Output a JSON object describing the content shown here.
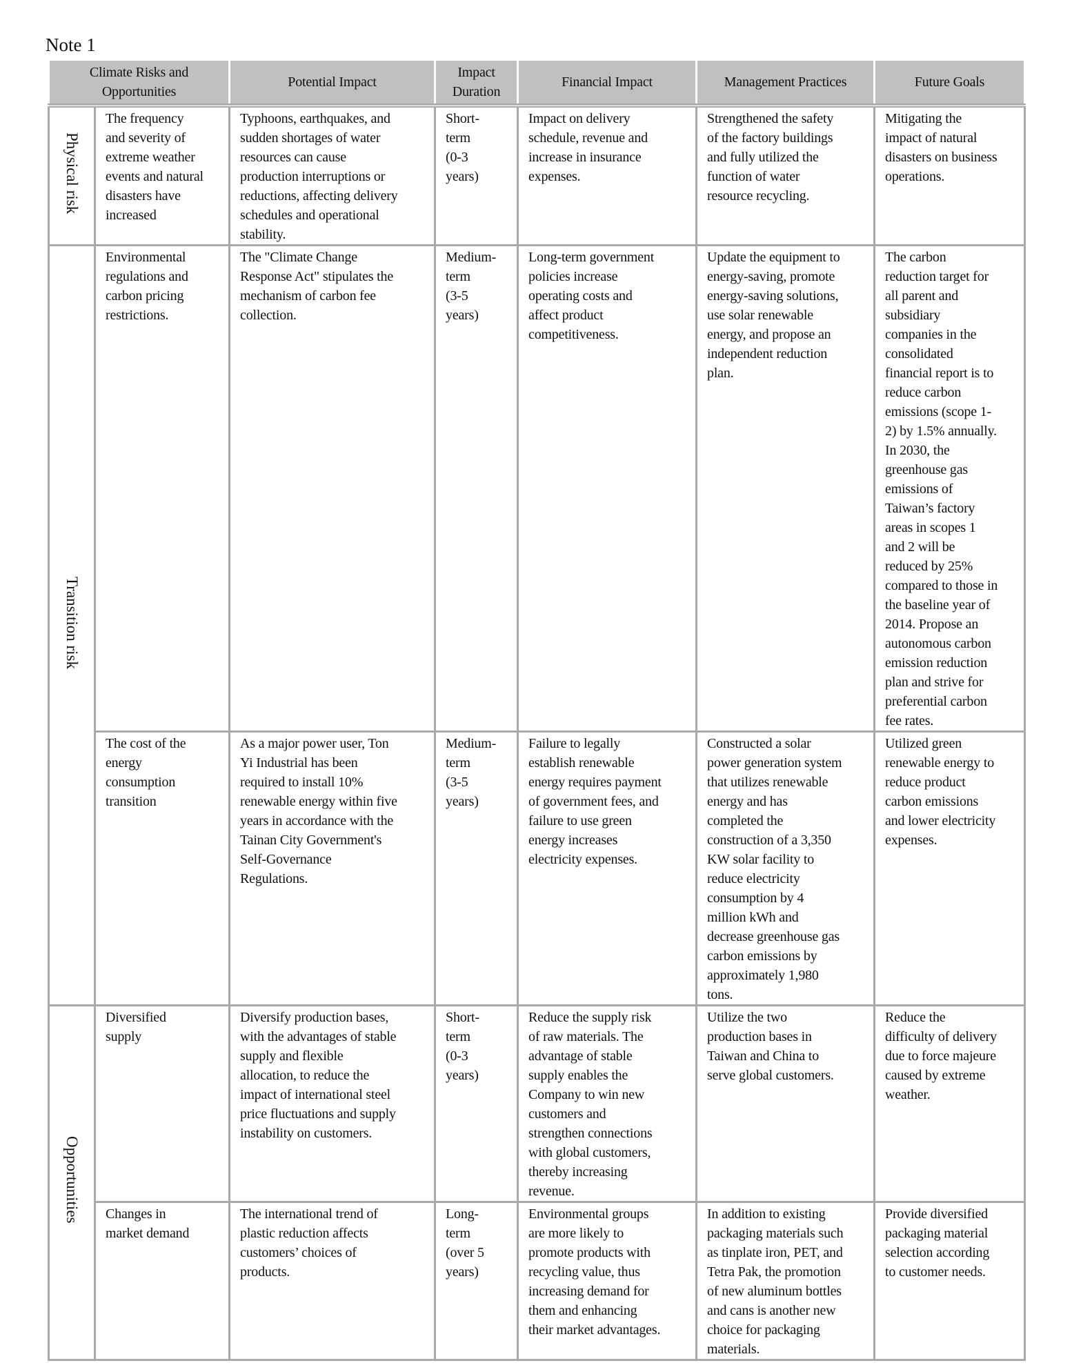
{
  "note": "Note 1",
  "headers": [
    "Climate Risks and\nOpportunities",
    "Potential Impact",
    "Impact\nDuration",
    "Financial Impact",
    "Management Practices",
    "Future Goals"
  ],
  "categories": [
    "Physical risk",
    "Transition risk",
    "Opportunities"
  ],
  "rows": [
    {
      "risk": "The frequency\nand severity of\nextreme weather\nevents and natural\ndisasters have\nincreased",
      "potential": "Typhoons, earthquakes, and\nsudden shortages of water\nresources can cause\nproduction interruptions or\nreductions, affecting delivery\nschedules and operational\nstability.",
      "duration": "Short-\nterm\n(0-3\nyears)",
      "financial": "Impact on delivery\nschedule, revenue and\nincrease in insurance\nexpenses.",
      "management": "Strengthened the safety\nof the factory buildings\nand fully utilized the\nfunction of water\nresource recycling.",
      "goals": "Mitigating the\nimpact of natural\ndisasters on business\noperations."
    },
    {
      "risk": "Environmental\nregulations        and\ncarbon       pricing\nrestrictions.",
      "potential": "The \"Climate Change\nResponse Act\" stipulates the\nmechanism of carbon fee\ncollection.",
      "duration": "Medium-\nterm\n(3-5\nyears)",
      "financial": "Long-term government\npolicies increase\noperating costs and\naffect product\ncompetitiveness.",
      "management": "Update the equipment to\nenergy-saving, promote\nenergy-saving solutions,\nuse solar renewable\nenergy, and propose an\nindependent reduction\nplan.",
      "goals": "The carbon\nreduction target for\nall parent and\nsubsidiary\ncompanies in the\nconsolidated\nfinancial report is to\nreduce carbon\nemissions (scope 1-\n2) by 1.5% annually.\nIn 2030, the\ngreenhouse gas\nemissions of\nTaiwan’s factory\nareas in scopes 1\nand 2 will be\nreduced by 25%\ncompared to those in\nthe baseline year of\n2014. Propose an\nautonomous carbon\nemission reduction\nplan and strive for\npreferential carbon\nfee rates."
    },
    {
      "risk": "The cost of the\nenergy\nconsumption\ntransition",
      "potential": "As a major power user, Ton\nYi Industrial has been\nrequired to install 10%\nrenewable energy within five\nyears in accordance with the\nTainan City Government's\nSelf-Governance\nRegulations.",
      "duration": "Medium-\nterm\n(3-5\nyears)",
      "financial": "Failure to legally\nestablish renewable\nenergy requires payment\nof government fees, and\nfailure to use green\nenergy increases\nelectricity expenses.",
      "management": "Constructed a solar\npower generation system\nthat utilizes renewable\nenergy and has\ncompleted the\nconstruction of a 3,350\nKW solar facility to\nreduce electricity\nconsumption by 4\nmillion kWh and\ndecrease greenhouse gas\ncarbon emissions by\napproximately 1,980\ntons.",
      "goals": "Utilized green\nrenewable energy to\nreduce product\ncarbon emissions\nand lower electricity\nexpenses."
    },
    {
      "risk": "Diversified\nsupply",
      "potential": "Diversify production bases,\nwith the advantages of stable\nsupply and flexible\nallocation, to reduce the\nimpact of international steel\nprice fluctuations and supply\ninstability on customers.",
      "duration": "Short-\nterm\n(0-3\nyears)",
      "financial": "Reduce the supply risk\nof raw materials. The\nadvantage of stable\nsupply enables the\nCompany to win new\ncustomers and\nstrengthen connections\nwith global customers,\nthereby increasing\nrevenue.",
      "management": "Utilize the two\nproduction bases in\nTaiwan and China to\nserve global customers.",
      "goals": "Reduce the\ndifficulty of delivery\ndue to force majeure\ncaused by extreme\nweather."
    },
    {
      "risk": "Changes             in\nmarket demand",
      "potential": "The international trend of\nplastic reduction affects\ncustomers’ choices of\nproducts.",
      "duration": "Long-\nterm\n(over      5\nyears)",
      "financial": "Environmental groups\nare more likely to\npromote products with\nrecycling value, thus\nincreasing demand for\nthem and enhancing\ntheir market advantages.",
      "management": "In addition to existing\npackaging materials such\nas tinplate iron, PET, and\nTetra Pak, the promotion\nof new aluminum bottles\nand cans is another new\nchoice for packaging\nmaterials.",
      "goals": "Provide diversified\npackaging material\nselection according\nto customer needs."
    }
  ]
}
